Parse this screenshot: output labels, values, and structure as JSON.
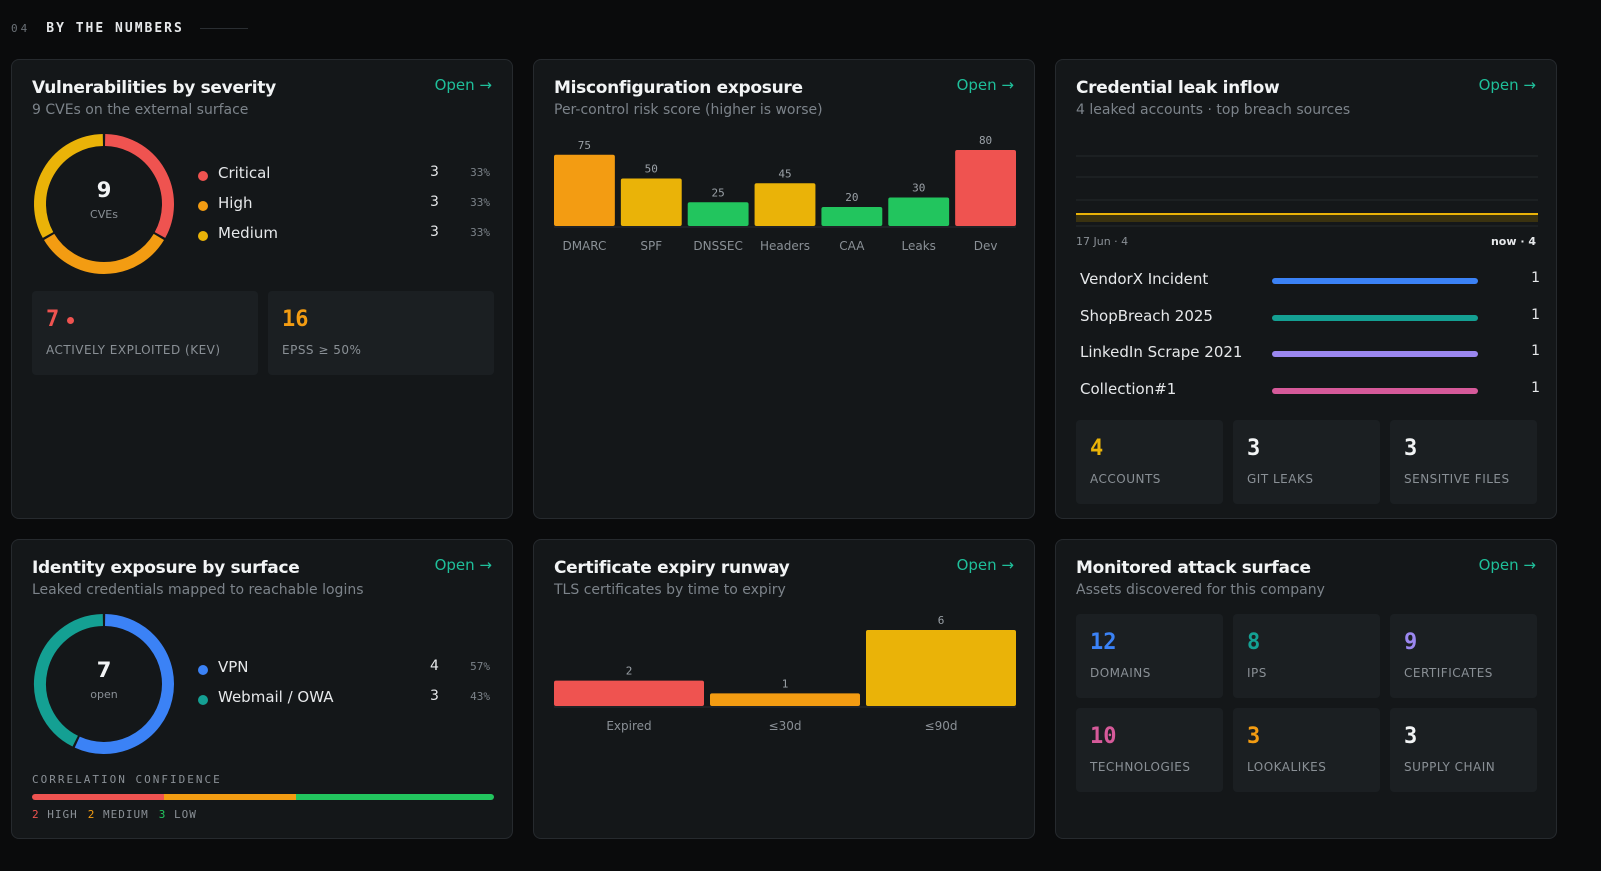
{
  "section": {
    "number": "04",
    "title": "BY THE NUMBERS"
  },
  "open_label": "Open →",
  "colors": {
    "critical": "#ef5350",
    "high": "#f39c12",
    "medium": "#eab308",
    "good": "#22c55e",
    "accent": "#1fbf9a",
    "blue": "#3b82f6",
    "teal": "#14a093",
    "purple": "#9b87f0",
    "pink": "#d65a9a"
  },
  "vulns": {
    "title": "Vulnerabilities by severity",
    "subtitle": "9 CVEs on the external surface",
    "total": "9",
    "total_label": "CVEs",
    "legend": [
      {
        "label": "Critical",
        "count": "3",
        "pct": "33%",
        "value": 3,
        "color": "#ef5350"
      },
      {
        "label": "High",
        "count": "3",
        "pct": "33%",
        "value": 3,
        "color": "#f39c12"
      },
      {
        "label": "Medium",
        "count": "3",
        "pct": "33%",
        "value": 3,
        "color": "#eab308"
      }
    ],
    "kev_value": "7",
    "kev_label": "ACTIVELY EXPLOITED (KEV)",
    "epss_value": "16",
    "epss_label": "EPSS ≥ 50%"
  },
  "misconfig": {
    "title": "Misconfiguration exposure",
    "subtitle": "Per-control risk score (higher is worse)",
    "chart_data": {
      "type": "bar",
      "categories": [
        "DMARC",
        "SPF",
        "DNSSEC",
        "Headers",
        "CAA",
        "Leaks",
        "Dev"
      ],
      "values": [
        75,
        50,
        25,
        45,
        20,
        30,
        80
      ],
      "colors": [
        "#f39c12",
        "#eab308",
        "#22c55e",
        "#eab308",
        "#22c55e",
        "#22c55e",
        "#ef5350"
      ],
      "ylim": [
        0,
        80
      ]
    }
  },
  "credleak": {
    "title": "Credential leak inflow",
    "subtitle": "4 leaked accounts · top breach sources",
    "chart_data": {
      "type": "line",
      "x_start": "17 Jun · 4",
      "x_end": "now · 4",
      "values": [
        4,
        4
      ],
      "ylim": [
        0,
        16
      ]
    },
    "sources": [
      {
        "name": "VendorX Incident",
        "count": "1",
        "color": "#3b82f6"
      },
      {
        "name": "ShopBreach 2025",
        "count": "1",
        "color": "#14a093"
      },
      {
        "name": "LinkedIn Scrape 2021",
        "count": "1",
        "color": "#9b87f0"
      },
      {
        "name": "Collection#1",
        "count": "1",
        "color": "#d65a9a"
      }
    ],
    "stats": [
      {
        "value": "4",
        "label": "ACCOUNTS",
        "color": "#eab308"
      },
      {
        "value": "3",
        "label": "GIT LEAKS",
        "color": "#f2f4f5"
      },
      {
        "value": "3",
        "label": "SENSITIVE FILES",
        "color": "#f2f4f5"
      }
    ]
  },
  "identity": {
    "title": "Identity exposure by surface",
    "subtitle": "Leaked credentials mapped to reachable logins",
    "total": "7",
    "total_label": "open",
    "legend": [
      {
        "label": "VPN",
        "count": "4",
        "pct": "57%",
        "value": 4,
        "color": "#3b82f6"
      },
      {
        "label": "Webmail / OWA",
        "count": "3",
        "pct": "43%",
        "value": 3,
        "color": "#14a093"
      }
    ],
    "confidence_label": "CORRELATION CONFIDENCE",
    "confidence": [
      {
        "label": "2 HIGH",
        "value": 2,
        "color": "#ef5350"
      },
      {
        "label": "2 MEDIUM",
        "value": 2,
        "color": "#f39c12"
      },
      {
        "label": "3 LOW",
        "value": 3,
        "color": "#22c55e"
      }
    ]
  },
  "certs": {
    "title": "Certificate expiry runway",
    "subtitle": "TLS certificates by time to expiry",
    "chart_data": {
      "type": "bar",
      "categories": [
        "Expired",
        "≤30d",
        "≤90d"
      ],
      "values": [
        2,
        1,
        6
      ],
      "colors": [
        "#ef5350",
        "#f39c12",
        "#eab308"
      ],
      "ylim": [
        0,
        6
      ]
    }
  },
  "surface": {
    "title": "Monitored attack surface",
    "subtitle": "Assets discovered for this company",
    "stats": [
      {
        "value": "12",
        "label": "DOMAINS",
        "color": "#3b82f6"
      },
      {
        "value": "8",
        "label": "IPS",
        "color": "#14a093"
      },
      {
        "value": "9",
        "label": "CERTIFICATES",
        "color": "#9b87f0"
      },
      {
        "value": "10",
        "label": "TECHNOLOGIES",
        "color": "#d65a9a"
      },
      {
        "value": "3",
        "label": "LOOKALIKES",
        "color": "#f39c12"
      },
      {
        "value": "3",
        "label": "SUPPLY CHAIN",
        "color": "#f2f4f5"
      }
    ]
  }
}
